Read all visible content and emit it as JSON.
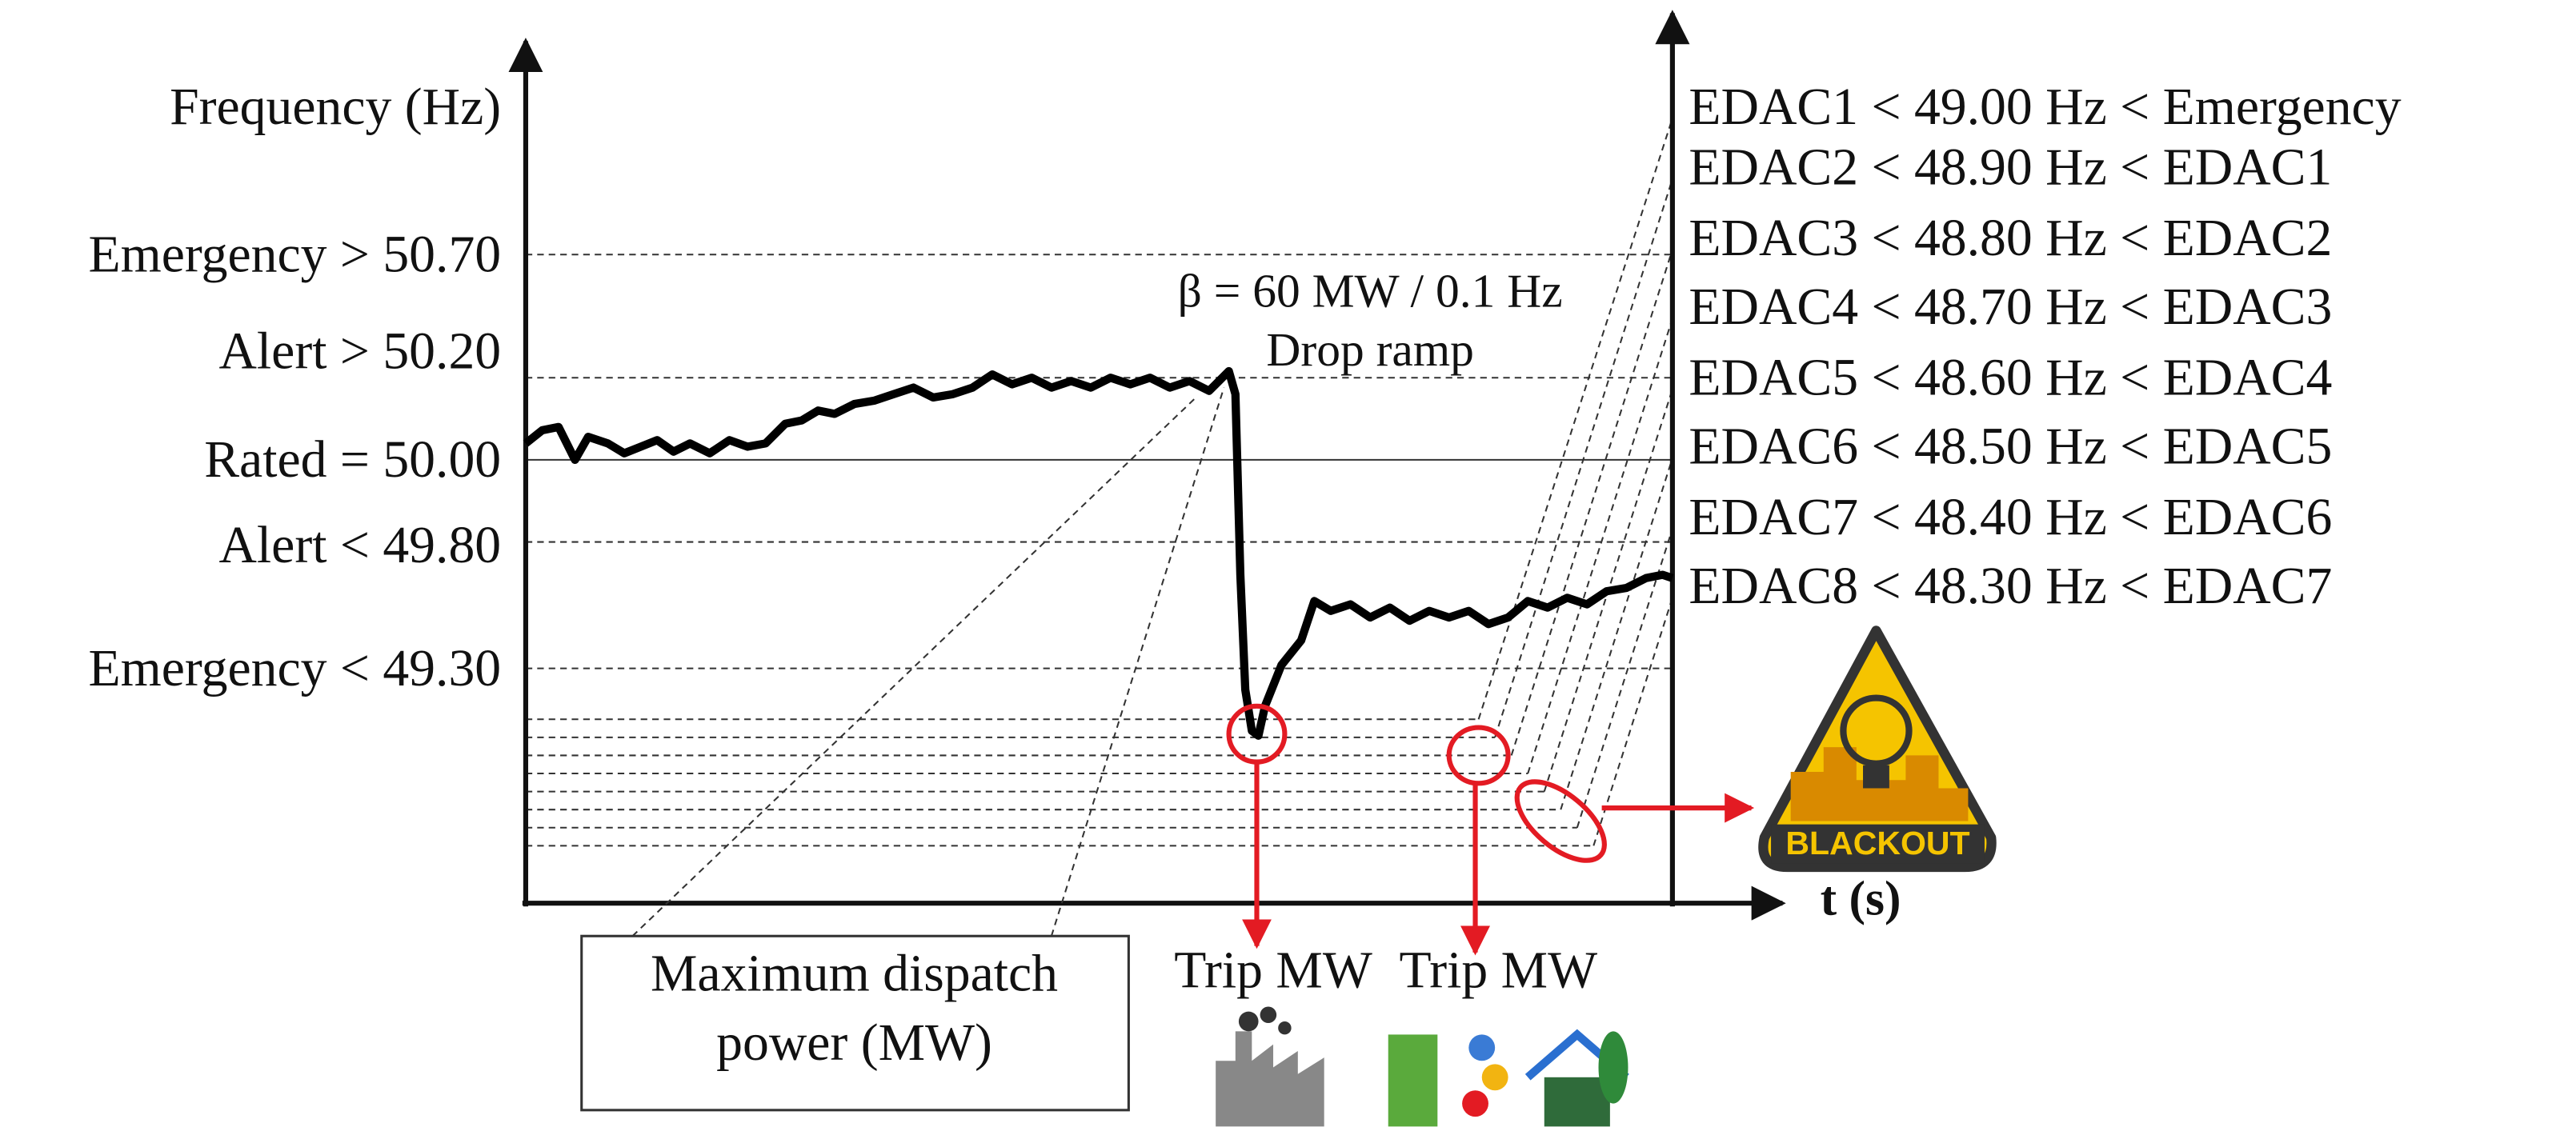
{
  "y_axis_label": "Frequency (Hz)",
  "levels": [
    "Emergency > 50.70",
    "Alert > 50.20",
    "Rated = 50.00",
    "Alert < 49.80",
    "Emergency < 49.30"
  ],
  "edac_levels": [
    "EDAC1 < 49.00 Hz < Emergency",
    "EDAC2 < 48.90 Hz < EDAC1",
    "EDAC3 < 48.80 Hz < EDAC2",
    "EDAC4 < 48.70 Hz < EDAC3",
    "EDAC5 < 48.60 Hz < EDAC4",
    "EDAC6 < 48.50 Hz < EDAC5",
    "EDAC7 < 48.40 Hz < EDAC6",
    "EDAC8 < 48.30 Hz < EDAC7"
  ],
  "annotations": {
    "beta": "β = 60 MW / 0.1 Hz",
    "drop_ramp": "Drop ramp",
    "x_axis_label": "t (s)",
    "dispatch_line1": "Maximum dispatch",
    "dispatch_line2": "power (MW)",
    "trip1": "Trip MW",
    "trip2": "Trip MW",
    "blackout": "BLACKOUT"
  }
}
